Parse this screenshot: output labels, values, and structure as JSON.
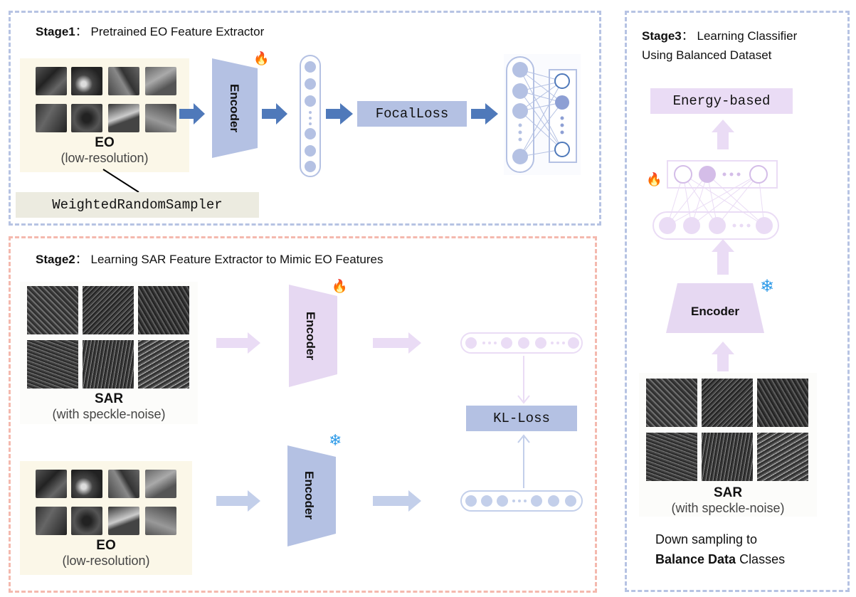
{
  "stage1": {
    "label": "Stage1",
    "sep": "：",
    "title": "Pretrained EO Feature Extractor",
    "encoder": "Encoder",
    "eo_caption": "EO",
    "eo_subcaption": "(low-resolution)",
    "loss": "FocalLoss",
    "sampler": "WeightedRandomSampler"
  },
  "stage2": {
    "label": "Stage2",
    "sep": "：",
    "title": "Learning SAR Feature Extractor to Mimic EO Features",
    "sar_caption": "SAR",
    "sar_subcaption": "(with speckle-noise)",
    "eo_caption": "EO",
    "eo_subcaption": "(low-resolution)",
    "encoder_top": "Encoder",
    "encoder_bottom": "Encoder",
    "loss": "KL-Loss"
  },
  "stage3": {
    "label": "Stage3",
    "sep": "：",
    "title_line1": "Learning Classifier",
    "title_line2": "Using Balanced Dataset",
    "head": "Energy-based",
    "encoder": "Encoder",
    "sar_caption": "SAR",
    "sar_subcaption": "(with speckle-noise)",
    "note_line1": "Down sampling to",
    "note_line2_bold": "Balance Data",
    "note_line2_rest": " Classes"
  },
  "colors": {
    "blue_fill": "#b7c2e2",
    "blue_arrow": "#4f79ba",
    "purple_fill": "#e6d8f2",
    "purple_light": "#eadcf5",
    "label_bg_blue": "#b4c1e3",
    "sampler_bg": "#ecebe0",
    "border_blue": "#b6c3e3",
    "border_red": "#f4b9ae"
  },
  "icons": [
    "flame-icon",
    "snowflake-icon"
  ]
}
